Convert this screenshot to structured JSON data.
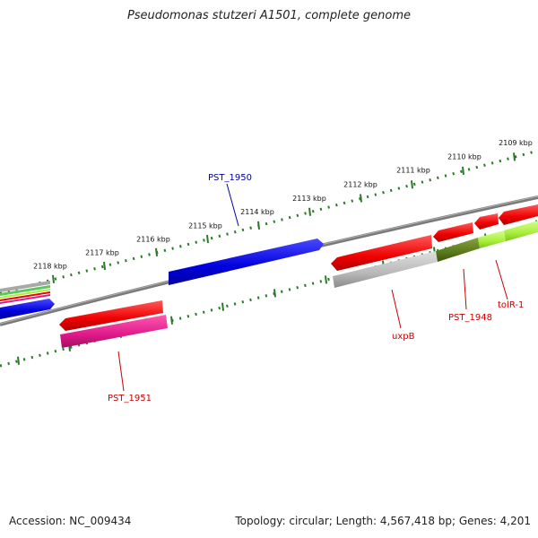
{
  "map": {
    "title": "Pseudomonas stutzeri A1501, complete genome",
    "accession": "Accession: NC_009434",
    "topology": "Topology: circular; Length: 4,567,418 bp; Genes: 4,201",
    "ruler_labels": [
      "2109 kbp",
      "2110 kbp",
      "2111 kbp",
      "2112 kbp",
      "2113 kbp",
      "2114 kbp",
      "2115 kbp",
      "2116 kbp",
      "2117 kbp",
      "2118 kbp"
    ],
    "gene_labels": {
      "pst1950": "PST_1950",
      "pst1951": "PST_1951",
      "uxpB": "uxpB",
      "pst1948": "PST_1948",
      "tolR1": "tolR-1"
    },
    "colors": {
      "tick": "#2a7a2a",
      "backbone": "#808080",
      "cds_red": "#ee0000",
      "cds_blue": "#0000dd",
      "cds_magenta": "#e0198a",
      "cds_gray": "#b8b8b8",
      "cds_olive": "#5a7a1a",
      "cds_lime": "#a8ee3a",
      "label_blue": "#0000aa",
      "label_red": "#cc0000"
    }
  }
}
